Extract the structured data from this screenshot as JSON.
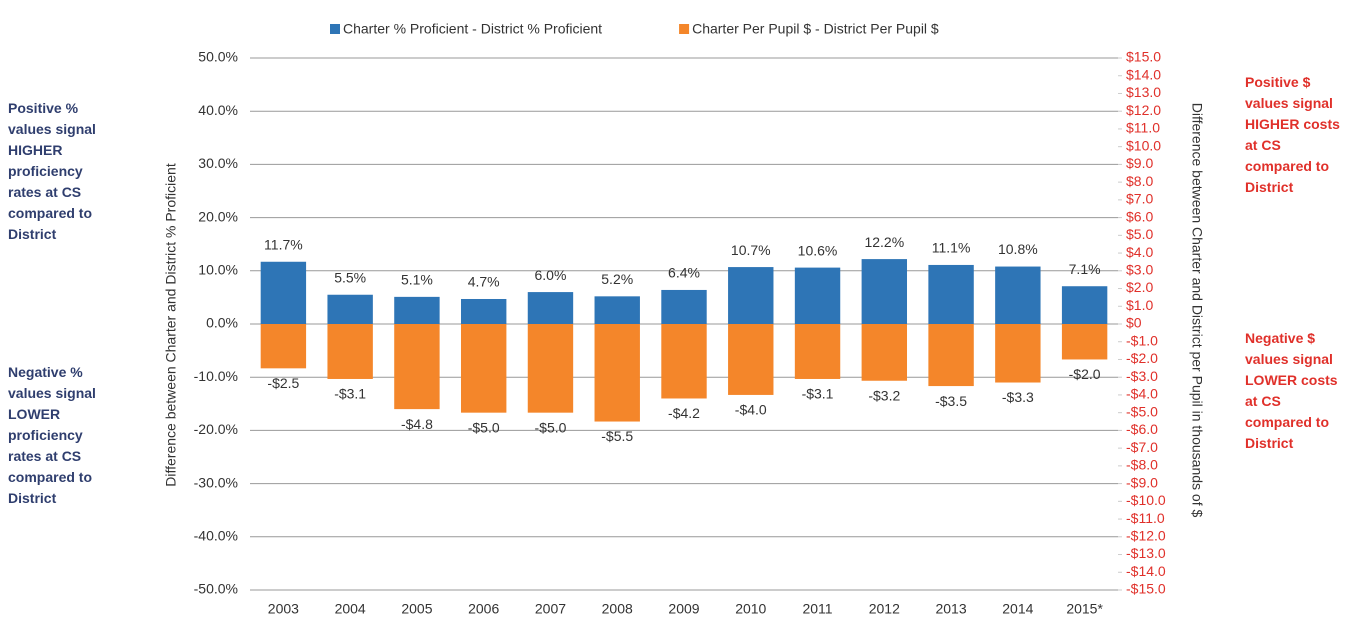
{
  "chart_data": {
    "type": "bar",
    "y_label": "Difference between Charter and District % Proficient",
    "y2_label": "Difference between Charter and District per Pupil in thousands of $",
    "categories": [
      "2003",
      "2004",
      "2005",
      "2006",
      "2007",
      "2008",
      "2009",
      "2010",
      "2011",
      "2012",
      "2013",
      "2014",
      "2015*"
    ],
    "series": [
      {
        "name": "Charter % Proficient - District % Proficient",
        "color": "#2e75b6",
        "axis": "y",
        "values": [
          11.7,
          5.5,
          5.1,
          4.7,
          6.0,
          5.2,
          6.4,
          10.7,
          10.6,
          12.2,
          11.1,
          10.8,
          7.1
        ],
        "value_labels": [
          "11.7%",
          "5.5%",
          "5.1%",
          "4.7%",
          "6.0%",
          "5.2%",
          "6.4%",
          "10.7%",
          "10.6%",
          "12.2%",
          "11.1%",
          "10.8%",
          "7.1%"
        ]
      },
      {
        "name": "Charter Per Pupil $ - District Per Pupil $",
        "color": "#f4862a",
        "axis": "y2",
        "values": [
          -2.5,
          -3.1,
          -4.8,
          -5.0,
          -5.0,
          -5.5,
          -4.2,
          -4.0,
          -3.1,
          -3.2,
          -3.5,
          -3.3,
          -2.0
        ],
        "value_labels": [
          "-$2.5",
          "-$3.1",
          "-$4.8",
          "-$5.0",
          "-$5.0",
          "-$5.5",
          "-$4.2",
          "-$4.0",
          "-$3.1",
          "-$3.2",
          "-$3.5",
          "-$3.3",
          "-$2.0"
        ]
      }
    ],
    "ylim": [
      -50,
      50
    ],
    "yticks": [
      {
        "value": 50,
        "label": "50.0%"
      },
      {
        "value": 40,
        "label": "40.0%"
      },
      {
        "value": 30,
        "label": "30.0%"
      },
      {
        "value": 20,
        "label": "20.0%"
      },
      {
        "value": 10,
        "label": "10.0%"
      },
      {
        "value": 0,
        "label": "0.0%"
      },
      {
        "value": -10,
        "label": "-10.0%"
      },
      {
        "value": -20,
        "label": "-20.0%"
      },
      {
        "value": -30,
        "label": "-30.0%"
      },
      {
        "value": -40,
        "label": "-40.0%"
      },
      {
        "value": -50,
        "label": "-50.0%"
      }
    ],
    "y2lim": [
      -15,
      15
    ],
    "y2ticks": [
      {
        "value": 15,
        "label": "$15.0"
      },
      {
        "value": 14,
        "label": "$14.0"
      },
      {
        "value": 13,
        "label": "$13.0"
      },
      {
        "value": 12,
        "label": "$12.0"
      },
      {
        "value": 11,
        "label": "$11.0"
      },
      {
        "value": 10,
        "label": "$10.0"
      },
      {
        "value": 9,
        "label": "$9.0"
      },
      {
        "value": 8,
        "label": "$8.0"
      },
      {
        "value": 7,
        "label": "$7.0"
      },
      {
        "value": 6,
        "label": "$6.0"
      },
      {
        "value": 5,
        "label": "$5.0"
      },
      {
        "value": 4,
        "label": "$4.0"
      },
      {
        "value": 3,
        "label": "$3.0"
      },
      {
        "value": 2,
        "label": "$2.0"
      },
      {
        "value": 1,
        "label": "$1.0"
      },
      {
        "value": 0,
        "label": "$0"
      },
      {
        "value": -1,
        "label": "-$1.0"
      },
      {
        "value": -2,
        "label": "-$2.0"
      },
      {
        "value": -3,
        "label": "-$3.0"
      },
      {
        "value": -4,
        "label": "-$4.0"
      },
      {
        "value": -5,
        "label": "-$5.0"
      },
      {
        "value": -6,
        "label": "-$6.0"
      },
      {
        "value": -7,
        "label": "-$7.0"
      },
      {
        "value": -8,
        "label": "-$8.0"
      },
      {
        "value": -9,
        "label": "-$9.0"
      },
      {
        "value": -10,
        "label": "-$10.0"
      },
      {
        "value": -11,
        "label": "-$11.0"
      },
      {
        "value": -12,
        "label": "-$12.0"
      },
      {
        "value": -13,
        "label": "-$13.0"
      },
      {
        "value": -14,
        "label": "-$14.0"
      },
      {
        "value": -15,
        "label": "-$15.0"
      }
    ],
    "grid": true,
    "legend": "top",
    "annotations": [
      "Positive % values signal HIGHER proficiency rates at CS compared to District",
      "Negative % values signal LOWER proficiency rates at CS compared to District",
      "Positive $ values signal HIGHER costs at CS compared to District",
      "Negative $ values signal LOWER costs at CS compared to District"
    ]
  }
}
